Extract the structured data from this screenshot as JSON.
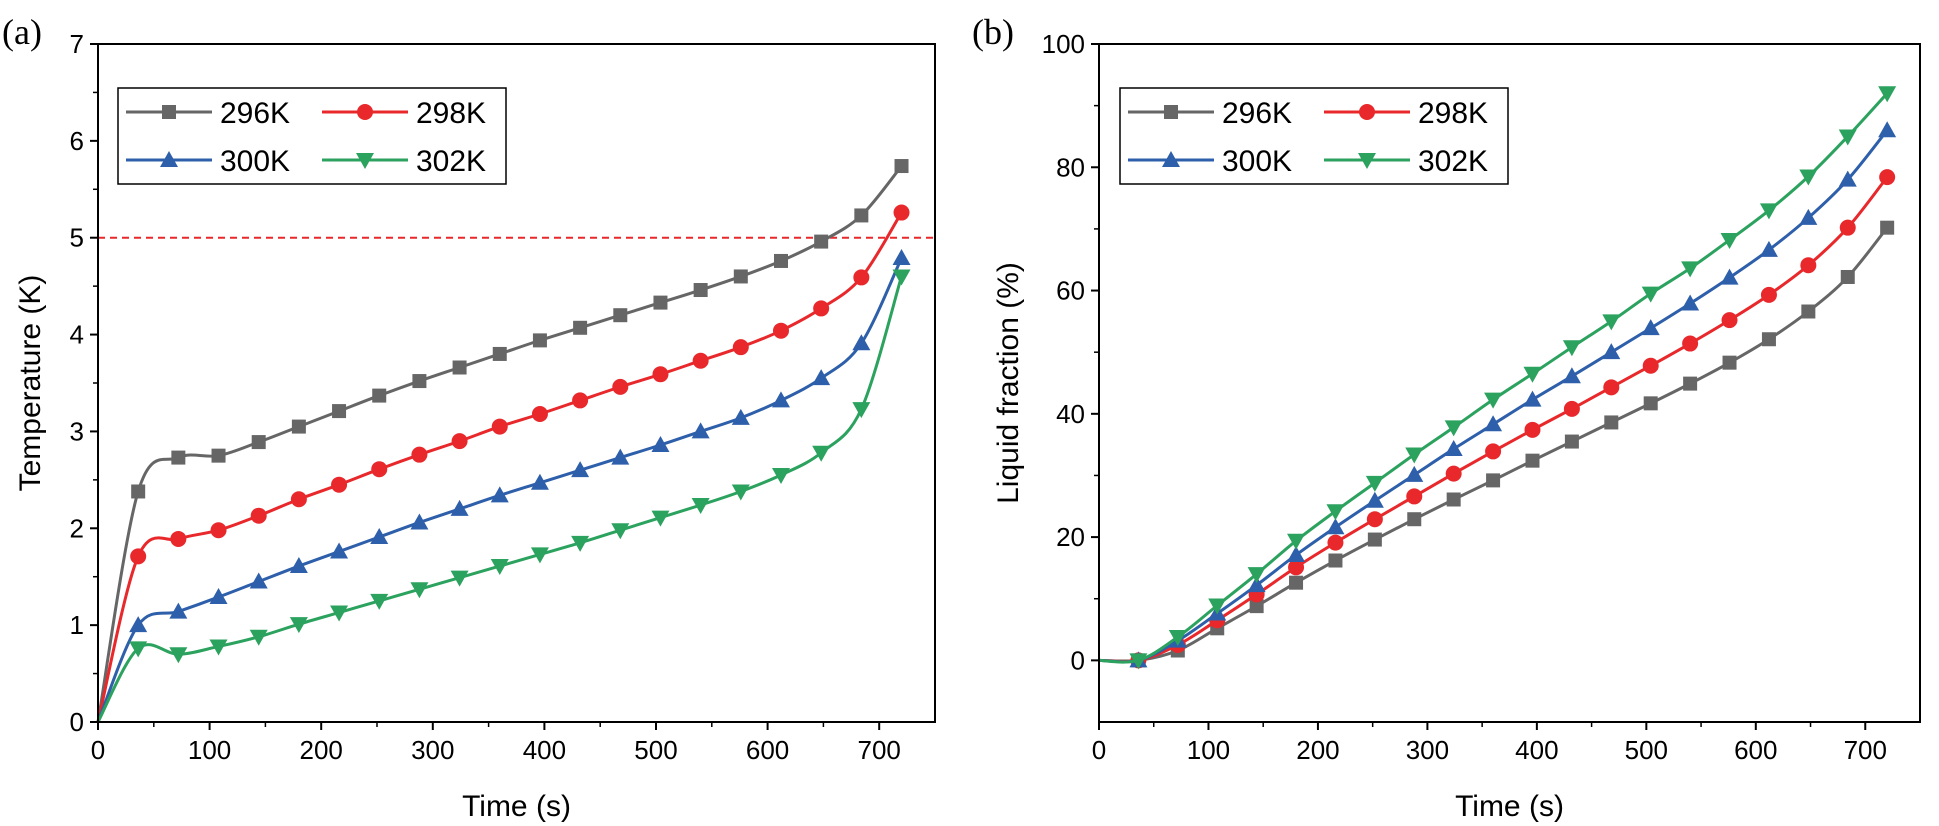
{
  "chart_data": [
    {
      "type": "line",
      "panel_label": "(a)",
      "xlabel": "Time (s)",
      "ylabel": "Temperature (K)",
      "xlim": [
        0,
        750
      ],
      "ylim": [
        0,
        7
      ],
      "xticks": [
        0,
        100,
        200,
        300,
        400,
        500,
        600,
        700
      ],
      "yticks": [
        0,
        1,
        2,
        3,
        4,
        5,
        6,
        7
      ],
      "reference_line": {
        "y": 5,
        "style": "dashed",
        "color": "#e8282b"
      },
      "legend": {
        "placement": "top-left",
        "columns": 2
      },
      "series": [
        {
          "name": "296K",
          "color": "#666666",
          "marker": "square",
          "x": [
            0,
            36,
            72,
            108,
            144,
            180,
            216,
            252,
            288,
            324,
            360,
            396,
            432,
            468,
            504,
            540,
            576,
            612,
            648,
            684,
            720
          ],
          "y": [
            0,
            2.38,
            2.73,
            2.75,
            2.89,
            3.05,
            3.21,
            3.37,
            3.52,
            3.66,
            3.8,
            3.94,
            4.07,
            4.2,
            4.33,
            4.46,
            4.6,
            4.76,
            4.96,
            5.23,
            5.74
          ]
        },
        {
          "name": "298K",
          "color": "#e8282b",
          "marker": "circle",
          "x": [
            0,
            36,
            72,
            108,
            144,
            180,
            216,
            252,
            288,
            324,
            360,
            396,
            432,
            468,
            504,
            540,
            576,
            612,
            648,
            684,
            720
          ],
          "y": [
            0,
            1.71,
            1.89,
            1.98,
            2.13,
            2.3,
            2.45,
            2.61,
            2.76,
            2.9,
            3.05,
            3.18,
            3.32,
            3.46,
            3.59,
            3.73,
            3.87,
            4.04,
            4.27,
            4.59,
            5.26
          ]
        },
        {
          "name": "300K",
          "color": "#2e5faa",
          "marker": "triangle-up",
          "x": [
            0,
            36,
            72,
            108,
            144,
            180,
            216,
            252,
            288,
            324,
            360,
            396,
            432,
            468,
            504,
            540,
            576,
            612,
            648,
            684,
            720
          ],
          "y": [
            0,
            1.0,
            1.14,
            1.29,
            1.45,
            1.61,
            1.76,
            1.91,
            2.06,
            2.2,
            2.34,
            2.47,
            2.6,
            2.73,
            2.86,
            3.0,
            3.14,
            3.32,
            3.55,
            3.91,
            4.79
          ]
        },
        {
          "name": "302K",
          "color": "#2ca25f",
          "marker": "triangle-down",
          "x": [
            0,
            36,
            72,
            108,
            144,
            180,
            216,
            252,
            288,
            324,
            360,
            396,
            432,
            468,
            504,
            540,
            576,
            612,
            648,
            684,
            720
          ],
          "y": [
            0,
            0.76,
            0.7,
            0.78,
            0.88,
            1.01,
            1.13,
            1.25,
            1.37,
            1.49,
            1.61,
            1.73,
            1.85,
            1.98,
            2.11,
            2.24,
            2.38,
            2.55,
            2.78,
            3.23,
            4.6
          ]
        }
      ]
    },
    {
      "type": "line",
      "panel_label": "(b)",
      "xlabel": "Time (s)",
      "ylabel": "Liquid fraction (%)",
      "xlim": [
        0,
        750
      ],
      "ylim": [
        -10,
        100
      ],
      "xticks": [
        0,
        100,
        200,
        300,
        400,
        500,
        600,
        700
      ],
      "yticks": [
        0,
        20,
        40,
        60,
        80,
        100
      ],
      "legend": {
        "placement": "top-left",
        "columns": 2
      },
      "series": [
        {
          "name": "296K",
          "color": "#666666",
          "marker": "square",
          "x": [
            0,
            36,
            72,
            108,
            144,
            180,
            216,
            252,
            288,
            324,
            360,
            396,
            432,
            468,
            504,
            540,
            576,
            612,
            648,
            684,
            720
          ],
          "y": [
            0,
            0,
            1.6,
            5.2,
            8.8,
            12.6,
            16.2,
            19.6,
            22.9,
            26.1,
            29.2,
            32.4,
            35.5,
            38.6,
            41.7,
            44.9,
            48.3,
            52.1,
            56.6,
            62.2,
            70.2
          ]
        },
        {
          "name": "298K",
          "color": "#e8282b",
          "marker": "circle",
          "x": [
            0,
            36,
            72,
            108,
            144,
            180,
            216,
            252,
            288,
            324,
            360,
            396,
            432,
            468,
            504,
            540,
            576,
            612,
            648,
            684,
            720
          ],
          "y": [
            0,
            0,
            2.5,
            6.5,
            10.7,
            15.1,
            19.1,
            22.9,
            26.6,
            30.3,
            33.9,
            37.4,
            40.8,
            44.3,
            47.8,
            51.4,
            55.2,
            59.3,
            64.1,
            70.2,
            78.4
          ]
        },
        {
          "name": "300K",
          "color": "#2e5faa",
          "marker": "triangle-up",
          "x": [
            0,
            36,
            72,
            108,
            144,
            180,
            216,
            252,
            288,
            324,
            360,
            396,
            432,
            468,
            504,
            540,
            576,
            612,
            648,
            684,
            720
          ],
          "y": [
            0,
            0,
            3.2,
            7.6,
            12.2,
            17.1,
            21.6,
            25.9,
            30.1,
            34.3,
            38.3,
            42.3,
            46.1,
            50.0,
            53.9,
            57.9,
            62.1,
            66.6,
            71.8,
            78.0,
            86.0
          ]
        },
        {
          "name": "302K",
          "color": "#2ca25f",
          "marker": "triangle-down",
          "x": [
            0,
            36,
            72,
            108,
            144,
            180,
            216,
            252,
            288,
            324,
            360,
            396,
            432,
            468,
            504,
            540,
            576,
            612,
            648,
            684,
            720
          ],
          "y": [
            0,
            0,
            3.8,
            8.9,
            14.0,
            19.4,
            24.2,
            28.8,
            33.4,
            37.8,
            42.3,
            46.5,
            50.8,
            55.0,
            59.5,
            63.6,
            68.2,
            73.0,
            78.5,
            85.0,
            92.0
          ]
        }
      ]
    }
  ]
}
